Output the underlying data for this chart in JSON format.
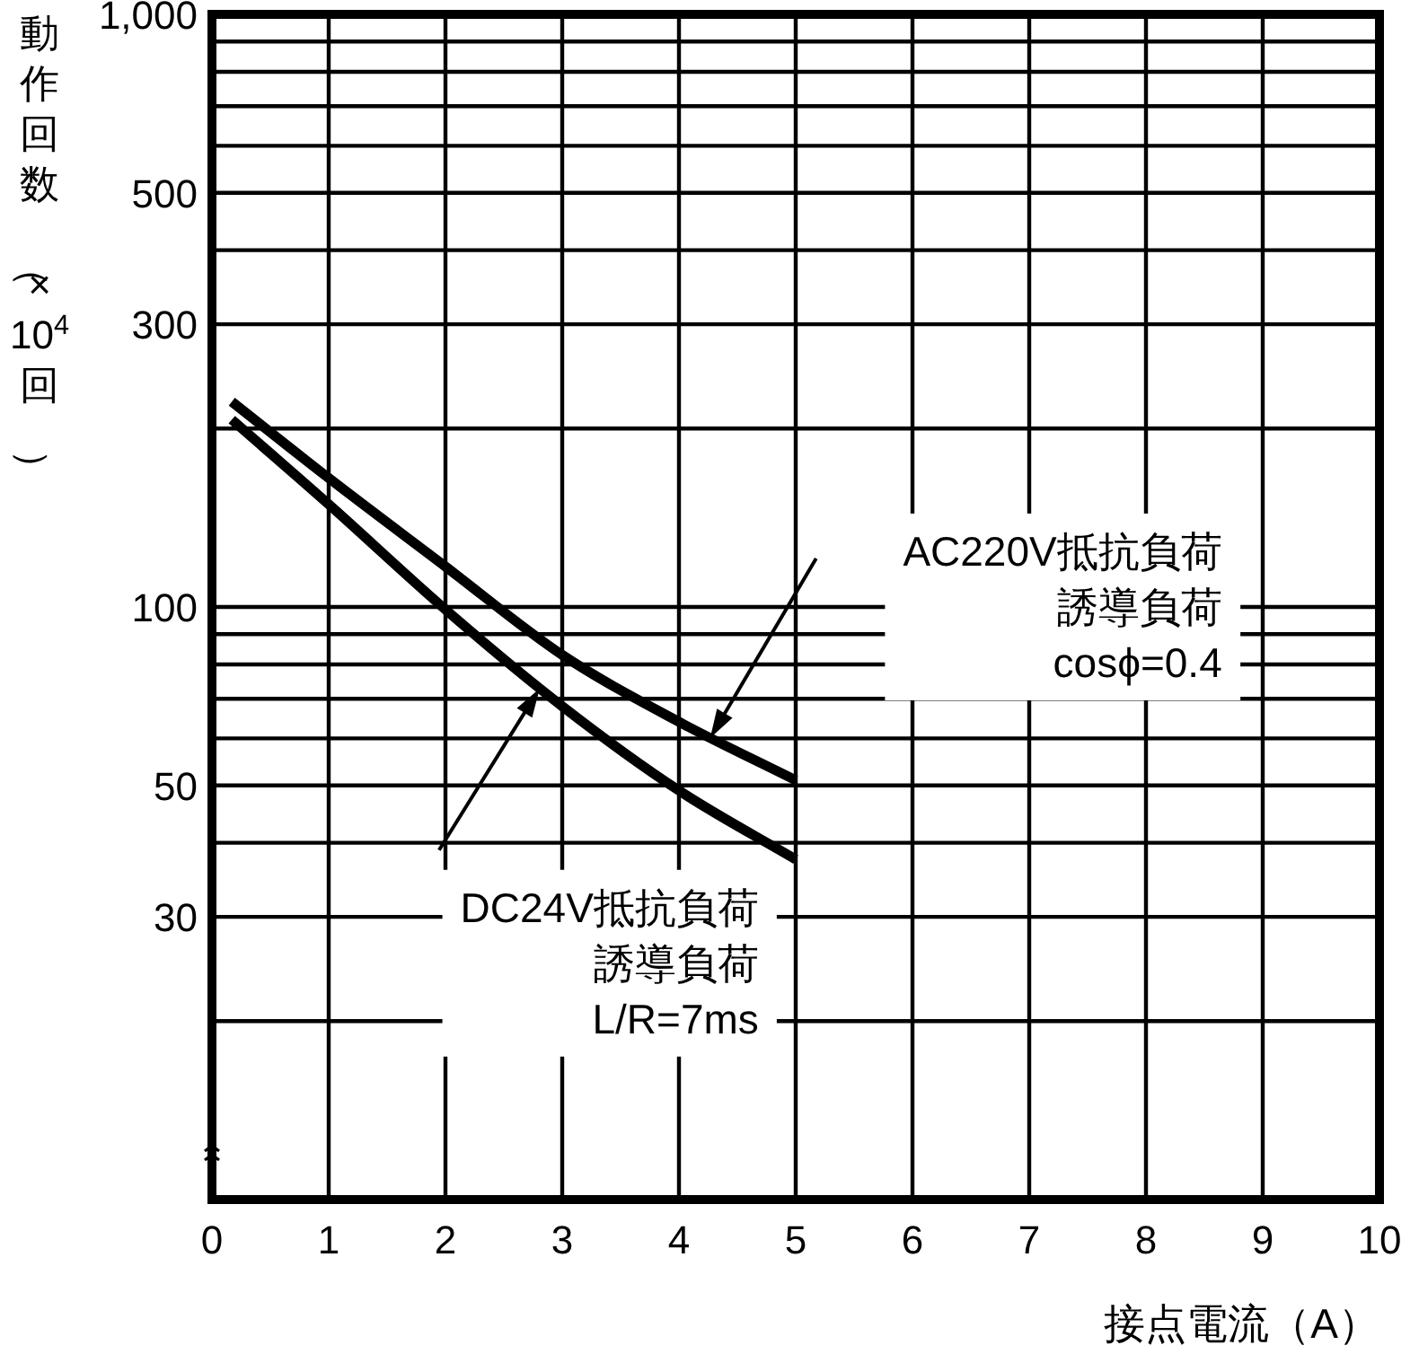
{
  "chart_data": {
    "type": "line",
    "xlabel": "接点電流（A）",
    "ylabel": "動作回数（×10$^{4}$回）",
    "log": "y",
    "grid": true,
    "marker": "none",
    "line_style": "solid",
    "xlim": [
      0,
      10
    ],
    "xticks": [
      0,
      1,
      2,
      3,
      4,
      5,
      6,
      7,
      8,
      9,
      10
    ],
    "ylim": [
      10,
      1000
    ],
    "yticks": [
      {
        "value": 20,
        "label": null
      },
      30,
      {
        "value": 40,
        "label": null
      },
      50,
      {
        "value": 60,
        "label": null
      },
      {
        "value": 70,
        "label": null
      },
      {
        "value": 80,
        "label": null
      },
      {
        "value": 90,
        "label": null
      },
      100,
      {
        "value": 200,
        "label": null
      },
      300,
      {
        "value": 400,
        "label": null
      },
      500,
      {
        "value": 600,
        "label": null
      },
      {
        "value": 700,
        "label": null
      },
      {
        "value": 800,
        "label": null
      },
      {
        "value": 900,
        "label": null
      },
      {
        "value": 1000,
        "label": "1,000"
      }
    ],
    "series": [
      {
        "color": "#000000",
        "x": [
          0.17,
          1,
          2,
          3,
          4,
          5
        ],
        "values": [
          222,
          165,
          117,
          83,
          64,
          51
        ]
      },
      {
        "color": "#000000",
        "x": [
          0.17,
          1,
          2,
          3,
          4,
          5
        ],
        "values": [
          207,
          149,
          99,
          68,
          49,
          37.5
        ]
      }
    ],
    "annotations": [
      "AC220V抵抗負荷誘導負荷\ncosϕ=0.4",
      "DC24V抵抗負荷誘導負荷\nL/R=7ms"
    ]
  }
}
